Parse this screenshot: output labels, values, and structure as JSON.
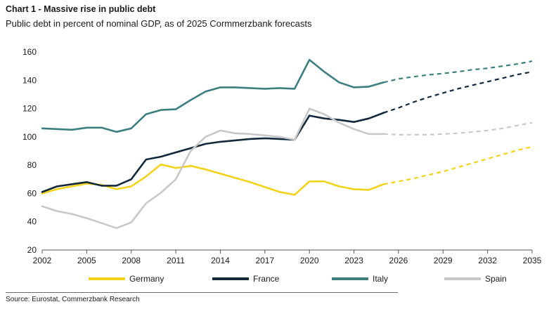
{
  "header": {
    "title": "Chart 1 - Massive rise in public debt",
    "subtitle": "Public debt in percent of nominal GDP, as of 2025 Cormmerzbank forecasts"
  },
  "footer": {
    "source": "Source: Eurostat, Commerzbank Research"
  },
  "chart_data": {
    "type": "line",
    "title": "Chart 1 - Massive rise in public debt",
    "subtitle": "Public debt in percent of nominal GDP, as of 2025 Cormmerzbank forecasts",
    "xlabel": "",
    "ylabel": "",
    "xlim": [
      2002,
      2035
    ],
    "ylim": [
      20,
      160
    ],
    "xticks": [
      2002,
      2005,
      2008,
      2011,
      2014,
      2017,
      2020,
      2023,
      2026,
      2029,
      2032,
      2035
    ],
    "yticks": [
      20,
      40,
      60,
      80,
      100,
      120,
      140,
      160
    ],
    "grid": false,
    "legend": "bottom",
    "forecast_from": 2025,
    "forecast_style": "dashed",
    "series": [
      {
        "name": "Germany",
        "color": "#f2d21a",
        "points": [
          [
            2002,
            60
          ],
          [
            2003,
            63
          ],
          [
            2004,
            65
          ],
          [
            2005,
            67
          ],
          [
            2006,
            66
          ],
          [
            2007,
            63
          ],
          [
            2008,
            65
          ],
          [
            2009,
            72
          ],
          [
            2010,
            80.5
          ],
          [
            2011,
            78
          ],
          [
            2012,
            79.5
          ],
          [
            2013,
            77
          ],
          [
            2014,
            74
          ],
          [
            2015,
            71
          ],
          [
            2016,
            68
          ],
          [
            2017,
            64.5
          ],
          [
            2018,
            61
          ],
          [
            2019,
            59
          ],
          [
            2020,
            68.5
          ],
          [
            2021,
            68.5
          ],
          [
            2022,
            65
          ],
          [
            2023,
            63
          ],
          [
            2024,
            62.5
          ],
          [
            2025,
            66.5
          ],
          [
            2026,
            68.5
          ],
          [
            2027,
            70.5
          ],
          [
            2028,
            73
          ],
          [
            2029,
            75.5
          ],
          [
            2030,
            78.5
          ],
          [
            2031,
            81.5
          ],
          [
            2032,
            84.5
          ],
          [
            2033,
            87.5
          ],
          [
            2034,
            90.5
          ],
          [
            2035,
            93
          ]
        ]
      },
      {
        "name": "France",
        "color": "#13293a",
        "points": [
          [
            2002,
            61
          ],
          [
            2003,
            65
          ],
          [
            2004,
            66.5
          ],
          [
            2005,
            68
          ],
          [
            2006,
            65.5
          ],
          [
            2007,
            65.5
          ],
          [
            2008,
            70
          ],
          [
            2009,
            84
          ],
          [
            2010,
            86
          ],
          [
            2011,
            89
          ],
          [
            2012,
            92
          ],
          [
            2013,
            95
          ],
          [
            2014,
            96.5
          ],
          [
            2015,
            97.5
          ],
          [
            2016,
            98.5
          ],
          [
            2017,
            99
          ],
          [
            2018,
            98.5
          ],
          [
            2019,
            98
          ],
          [
            2020,
            115
          ],
          [
            2021,
            113
          ],
          [
            2022,
            112
          ],
          [
            2023,
            110.5
          ],
          [
            2024,
            113
          ],
          [
            2025,
            117
          ],
          [
            2026,
            120.5
          ],
          [
            2027,
            124.5
          ],
          [
            2028,
            128
          ],
          [
            2029,
            131
          ],
          [
            2030,
            134
          ],
          [
            2031,
            136.5
          ],
          [
            2032,
            139
          ],
          [
            2033,
            141.5
          ],
          [
            2034,
            144
          ],
          [
            2035,
            146
          ]
        ]
      },
      {
        "name": "Italy",
        "color": "#3d7f7f",
        "points": [
          [
            2002,
            106
          ],
          [
            2003,
            105.5
          ],
          [
            2004,
            105
          ],
          [
            2005,
            106.5
          ],
          [
            2006,
            106.5
          ],
          [
            2007,
            103.5
          ],
          [
            2008,
            106
          ],
          [
            2009,
            116
          ],
          [
            2010,
            119
          ],
          [
            2011,
            119.5
          ],
          [
            2012,
            126
          ],
          [
            2013,
            132
          ],
          [
            2014,
            135
          ],
          [
            2015,
            135
          ],
          [
            2016,
            134.5
          ],
          [
            2017,
            134
          ],
          [
            2018,
            134.5
          ],
          [
            2019,
            134
          ],
          [
            2020,
            154.5
          ],
          [
            2021,
            146
          ],
          [
            2022,
            138.5
          ],
          [
            2023,
            135
          ],
          [
            2024,
            135.5
          ],
          [
            2025,
            138.5
          ],
          [
            2026,
            141
          ],
          [
            2027,
            142.5
          ],
          [
            2028,
            143.8
          ],
          [
            2029,
            144.8
          ],
          [
            2030,
            146
          ],
          [
            2031,
            147.5
          ],
          [
            2032,
            148.5
          ],
          [
            2033,
            150
          ],
          [
            2034,
            151.5
          ],
          [
            2035,
            153.5
          ]
        ]
      },
      {
        "name": "Spain",
        "color": "#c8c8c8",
        "points": [
          [
            2002,
            51
          ],
          [
            2003,
            47.5
          ],
          [
            2004,
            45.5
          ],
          [
            2005,
            42.5
          ],
          [
            2006,
            39
          ],
          [
            2007,
            35.5
          ],
          [
            2008,
            39.5
          ],
          [
            2009,
            53
          ],
          [
            2010,
            60.5
          ],
          [
            2011,
            70
          ],
          [
            2012,
            90
          ],
          [
            2013,
            100
          ],
          [
            2014,
            104.5
          ],
          [
            2015,
            102.5
          ],
          [
            2016,
            102
          ],
          [
            2017,
            101
          ],
          [
            2018,
            100
          ],
          [
            2019,
            98
          ],
          [
            2020,
            120
          ],
          [
            2021,
            116
          ],
          [
            2022,
            110
          ],
          [
            2023,
            105.5
          ],
          [
            2024,
            102
          ],
          [
            2025,
            102
          ],
          [
            2026,
            101.5
          ],
          [
            2027,
            101.5
          ],
          [
            2028,
            101.5
          ],
          [
            2029,
            102
          ],
          [
            2030,
            102.5
          ],
          [
            2031,
            103.5
          ],
          [
            2032,
            104.5
          ],
          [
            2033,
            106
          ],
          [
            2034,
            108
          ],
          [
            2035,
            110
          ]
        ]
      }
    ]
  }
}
